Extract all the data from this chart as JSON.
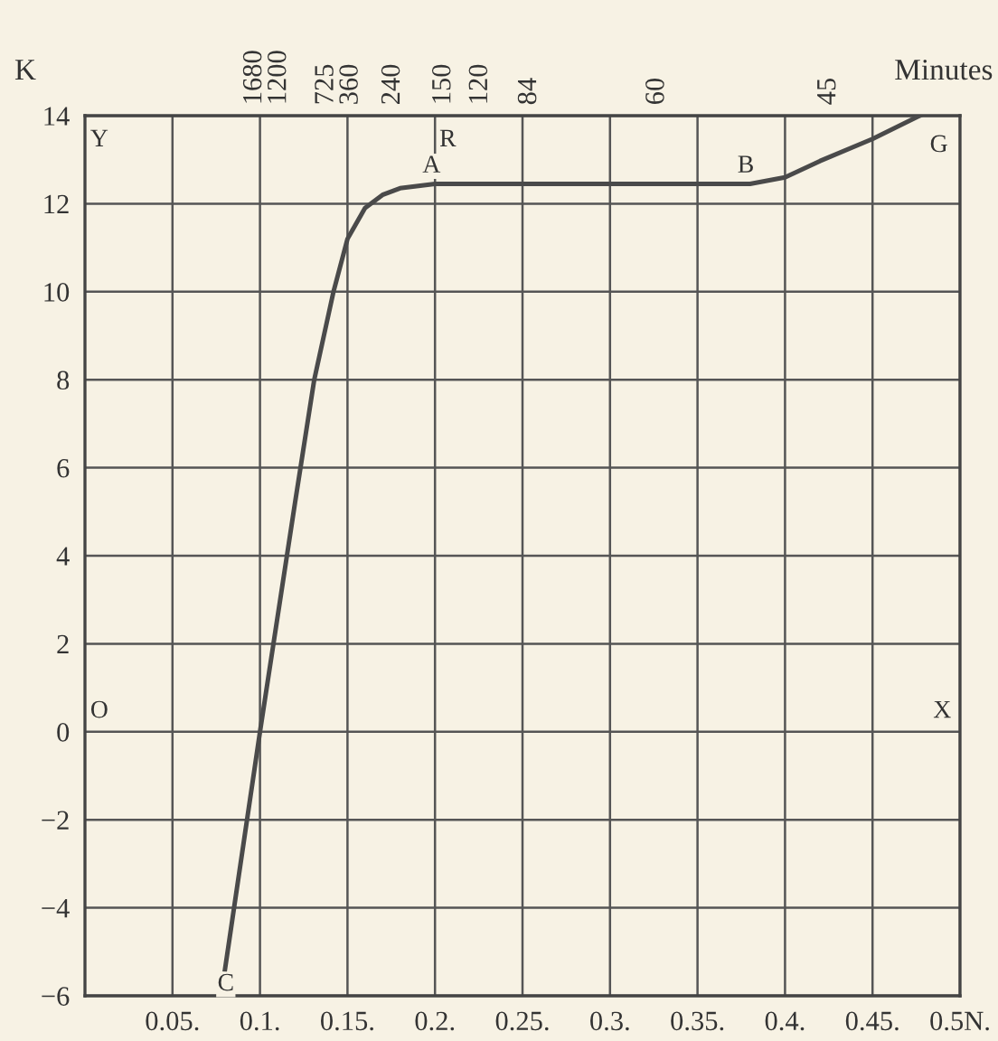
{
  "chart_data": {
    "type": "line",
    "ylabel": "K",
    "x2label": "Minutes",
    "series": [
      {
        "color": "#4a4a4a",
        "x": [
          0.08,
          0.1,
          0.12,
          0.131,
          0.142,
          0.15,
          0.16,
          0.17,
          0.18,
          0.2,
          0.3,
          0.38,
          0.4,
          0.42,
          0.45,
          0.477
        ],
        "values": [
          -5.4,
          0.0,
          5.2,
          8,
          10,
          11.2,
          11.9,
          12.2,
          12.35,
          12.45,
          12.45,
          12.45,
          12.6,
          12.97,
          13.47,
          14
        ]
      }
    ],
    "xlim": [
      0,
      0.5
    ],
    "ylim": [
      -6,
      14
    ],
    "xticks": [
      {
        "value": 0.05,
        "label": "0.05."
      },
      {
        "value": 0.1,
        "label": "0.1."
      },
      {
        "value": 0.15,
        "label": "0.15."
      },
      {
        "value": 0.2,
        "label": "0.2."
      },
      {
        "value": 0.25,
        "label": "0.25."
      },
      {
        "value": 0.3,
        "label": "0.3."
      },
      {
        "value": 0.35,
        "label": "0.35."
      },
      {
        "value": 0.4,
        "label": "0.4."
      },
      {
        "value": 0.45,
        "label": "0.45."
      },
      {
        "value": 0.5,
        "label": "0.5N."
      }
    ],
    "yticks": [
      {
        "value": -6,
        "label": "−6"
      },
      {
        "value": -4,
        "label": "−4"
      },
      {
        "value": -2,
        "label": "−2"
      },
      0,
      2,
      4,
      6,
      8,
      10,
      12,
      14
    ],
    "grid": true,
    "marker": "none",
    "line_style": "solid",
    "annotations": [
      "1680",
      "1200",
      "725",
      "360",
      "240",
      "150",
      "120",
      "84",
      "60",
      "45",
      "Y",
      "R",
      {
        "text": "A",
        "x": 0.2,
        "y": 12.45
      },
      {
        "text": "B",
        "x": 0.38,
        "y": 12.45
      },
      {
        "text": "G",
        "x": 0.477,
        "y": 14
      },
      "O",
      "X",
      {
        "text": "C",
        "x": 0.08,
        "y": -5.4
      }
    ]
  }
}
